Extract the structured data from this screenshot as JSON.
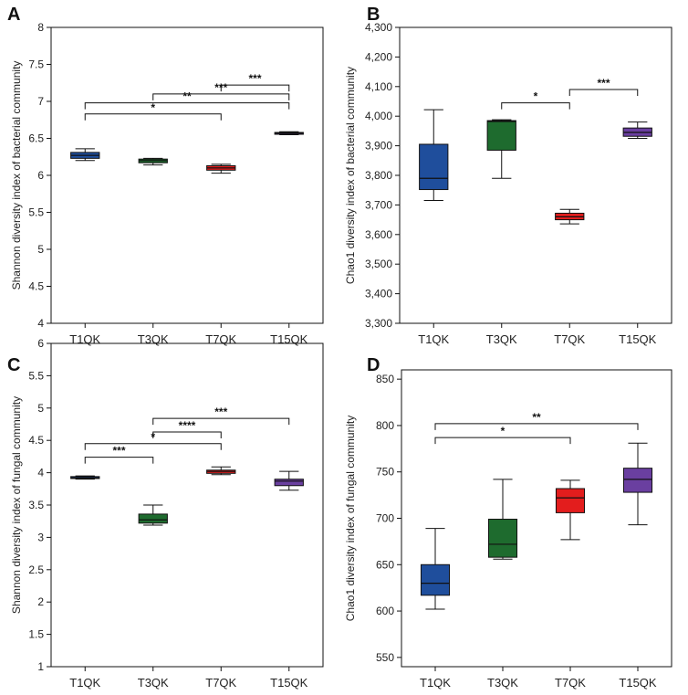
{
  "chart_data": [
    {
      "panel": "A",
      "type": "box",
      "ylabel": "Shannon diversity index of bacterial community",
      "ylim": [
        4,
        8
      ],
      "yticks": [
        4,
        4.5,
        5,
        5.5,
        6,
        6.5,
        7,
        7.5,
        8
      ],
      "ytick_labels": [
        "4",
        "4.5",
        "5",
        "5.5",
        "6",
        "6.5",
        "7",
        "7.5",
        "8"
      ],
      "categories": [
        "T1QK",
        "T3QK",
        "T7QK",
        "T15QK"
      ],
      "colors": [
        "#1f4e9c",
        "#1e6b2e",
        "#e31d1d",
        "#6a3fa0"
      ],
      "boxes": [
        {
          "min": 6.2,
          "q1": 6.23,
          "median": 6.27,
          "q3": 6.31,
          "max": 6.36
        },
        {
          "min": 6.14,
          "q1": 6.17,
          "median": 6.2,
          "q3": 6.22,
          "max": 6.23
        },
        {
          "min": 6.03,
          "q1": 6.07,
          "median": 6.1,
          "q3": 6.13,
          "max": 6.15
        },
        {
          "min": 6.55,
          "q1": 6.56,
          "median": 6.57,
          "q3": 6.58,
          "max": 6.59
        }
      ],
      "significance": [
        {
          "from": 0,
          "to": 2,
          "y": 6.83,
          "label": "*"
        },
        {
          "from": 0,
          "to": 3,
          "y": 6.98,
          "label": "**"
        },
        {
          "from": 1,
          "to": 3,
          "y": 7.1,
          "label": "***"
        },
        {
          "from": 2,
          "to": 3,
          "y": 7.22,
          "label": "***"
        }
      ]
    },
    {
      "panel": "B",
      "type": "box",
      "ylabel": "Chao1 diversity index of bacterial community",
      "ylim": [
        3300,
        4300
      ],
      "yticks": [
        3300,
        3400,
        3500,
        3600,
        3700,
        3800,
        3900,
        4000,
        4100,
        4200,
        4300
      ],
      "ytick_labels": [
        "3,300",
        "3,400",
        "3,500",
        "3,600",
        "3,700",
        "3,800",
        "3,900",
        "4,000",
        "4,100",
        "4,200",
        "4,300"
      ],
      "categories": [
        "T1QK",
        "T3QK",
        "T7QK",
        "T15QK"
      ],
      "colors": [
        "#1f4e9c",
        "#1e6b2e",
        "#e31d1d",
        "#6a3fa0"
      ],
      "boxes": [
        {
          "min": 3715,
          "q1": 3752,
          "median": 3790,
          "q3": 3905,
          "max": 4022
        },
        {
          "min": 3790,
          "q1": 3885,
          "median": 3982,
          "q3": 3985,
          "max": 3988
        },
        {
          "min": 3636,
          "q1": 3650,
          "median": 3660,
          "q3": 3672,
          "max": 3685
        },
        {
          "min": 3925,
          "q1": 3932,
          "median": 3945,
          "q3": 3960,
          "max": 3980
        }
      ],
      "significance": [
        {
          "from": 1,
          "to": 2,
          "y": 4045,
          "label": "*"
        },
        {
          "from": 2,
          "to": 3,
          "y": 4090,
          "label": "***"
        }
      ]
    },
    {
      "panel": "C",
      "type": "box",
      "ylabel": "Shannon diversity index of fungal community",
      "ylim": [
        1,
        6
      ],
      "yticks": [
        1,
        1.5,
        2,
        2.5,
        3,
        3.5,
        4,
        4.5,
        5,
        5.5,
        6
      ],
      "ytick_labels": [
        "1",
        "1.5",
        "2",
        "2.5",
        "3",
        "3.5",
        "4",
        "4.5",
        "5",
        "5.5",
        "6"
      ],
      "categories": [
        "T1QK",
        "T3QK",
        "T7QK",
        "T15QK"
      ],
      "colors": [
        "#1f4e9c",
        "#1e6b2e",
        "#e31d1d",
        "#6a3fa0"
      ],
      "boxes": [
        {
          "min": 3.9,
          "q1": 3.91,
          "median": 3.92,
          "q3": 3.94,
          "max": 3.95
        },
        {
          "min": 3.19,
          "q1": 3.22,
          "median": 3.27,
          "q3": 3.36,
          "max": 3.5
        },
        {
          "min": 3.97,
          "q1": 3.99,
          "median": 4.02,
          "q3": 4.04,
          "max": 4.09
        },
        {
          "min": 3.73,
          "q1": 3.8,
          "median": 3.87,
          "q3": 3.9,
          "max": 4.02
        }
      ],
      "significance": [
        {
          "from": 0,
          "to": 1,
          "y": 4.24,
          "label": "***"
        },
        {
          "from": 0,
          "to": 2,
          "y": 4.45,
          "label": "*"
        },
        {
          "from": 1,
          "to": 2,
          "y": 4.63,
          "label": "****"
        },
        {
          "from": 1,
          "to": 3,
          "y": 4.84,
          "label": "***"
        }
      ]
    },
    {
      "panel": "D",
      "type": "box",
      "ylabel": "Chao1 diversity index of fungal community",
      "ylim": [
        540,
        860
      ],
      "yticks": [
        550,
        600,
        650,
        700,
        750,
        800,
        850
      ],
      "ytick_labels": [
        "550",
        "600",
        "650",
        "700",
        "750",
        "800",
        "850"
      ],
      "categories": [
        "T1QK",
        "T3QK",
        "T7QK",
        "T15QK"
      ],
      "colors": [
        "#1f4e9c",
        "#1e6b2e",
        "#e31d1d",
        "#6a3fa0"
      ],
      "boxes": [
        {
          "min": 602,
          "q1": 617,
          "median": 630,
          "q3": 650,
          "max": 689
        },
        {
          "min": 656,
          "q1": 658,
          "median": 672,
          "q3": 699,
          "max": 742
        },
        {
          "min": 677,
          "q1": 706,
          "median": 722,
          "q3": 732,
          "max": 741
        },
        {
          "min": 693,
          "q1": 728,
          "median": 742,
          "q3": 754,
          "max": 781
        }
      ],
      "significance": [
        {
          "from": 0,
          "to": 2,
          "y": 787,
          "label": "*"
        },
        {
          "from": 0,
          "to": 3,
          "y": 802,
          "label": "**"
        }
      ]
    }
  ]
}
